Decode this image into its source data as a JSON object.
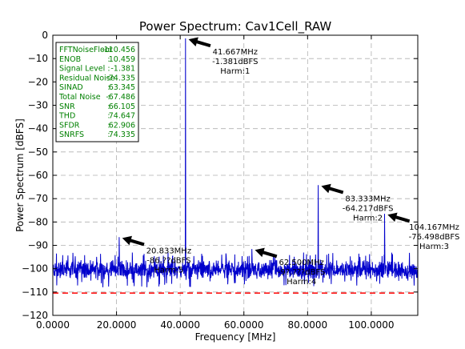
{
  "chart_data": {
    "type": "line",
    "title": "Power Spectrum: Cav1Cell_RAW",
    "xlabel": "Frequency [MHz]",
    "ylabel": "Power Spectrum [dBFS]",
    "xlim": [
      0,
      114.6
    ],
    "ylim": [
      -120,
      0
    ],
    "grid": true,
    "x_ticks": [
      0,
      20,
      40,
      60,
      80,
      100
    ],
    "x_tick_labels": [
      "0.0000",
      "20.0000",
      "40.0000",
      "60.0000",
      "80.0000",
      "100.0000"
    ],
    "y_ticks": [
      0,
      -10,
      -20,
      -30,
      -40,
      -50,
      -60,
      -70,
      -80,
      -90,
      -100,
      -110,
      -120
    ],
    "y_tick_labels": [
      "0",
      "−10",
      "−20",
      "−30",
      "−40",
      "−50",
      "−60",
      "−70",
      "−80",
      "−90",
      "−100",
      "−110",
      "−120"
    ],
    "series_color": "#0000cc",
    "noise_floor": {
      "value": -110.456,
      "color": "#ff0000",
      "style": "dashed"
    },
    "noise_band": {
      "min": -108,
      "max": -93,
      "typical": -100.5
    },
    "peaks": [
      {
        "x": 20.833,
        "y": -86.5
      },
      {
        "x": 41.667,
        "y": -1.381
      },
      {
        "x": 62.5,
        "y": -91.6
      },
      {
        "x": 83.333,
        "y": -64.217
      },
      {
        "x": 104.167,
        "y": -76.498
      }
    ],
    "annotations": [
      {
        "x": 41.667,
        "y": -1.381,
        "lines": [
          "41.667MHz",
          "-1.381dBFS",
          "Harm:1"
        ]
      },
      {
        "x": 20.833,
        "y": -86.5,
        "lines": [
          "20.833MHz",
          "-86.??dBFS",
          "Harm:5"
        ]
      },
      {
        "x": 62.5,
        "y": -91.6,
        "lines": [
          "62.500MHz",
          "-9?.???dBFS",
          "Harm:4"
        ]
      },
      {
        "x": 83.333,
        "y": -64.217,
        "lines": [
          "83.333MHz",
          "-64.217dBFS",
          "Harm:2"
        ]
      },
      {
        "x": 104.167,
        "y": -76.498,
        "lines": [
          "104.167MHz",
          "-76.498dBFS",
          "Harm:3"
        ]
      }
    ],
    "stats": [
      {
        "label": "FFTNoiseFloor",
        "value": "-110.456"
      },
      {
        "label": "ENOB",
        "value": "10.459"
      },
      {
        "label": "Signal Level",
        "value": "-1.381"
      },
      {
        "label": "Residual Noise",
        "value": "-74.335"
      },
      {
        "label": "SINAD",
        "value": "63.345"
      },
      {
        "label": "Total Noise",
        "value": "-67.486"
      },
      {
        "label": "SNR",
        "value": "66.105"
      },
      {
        "label": "THD",
        "value": "74.647"
      },
      {
        "label": "SFDR",
        "value": "62.906"
      },
      {
        "label": "SNRFS",
        "value": "74.335"
      }
    ],
    "stats_text_color": "#008000",
    "stats_sep": ":"
  }
}
